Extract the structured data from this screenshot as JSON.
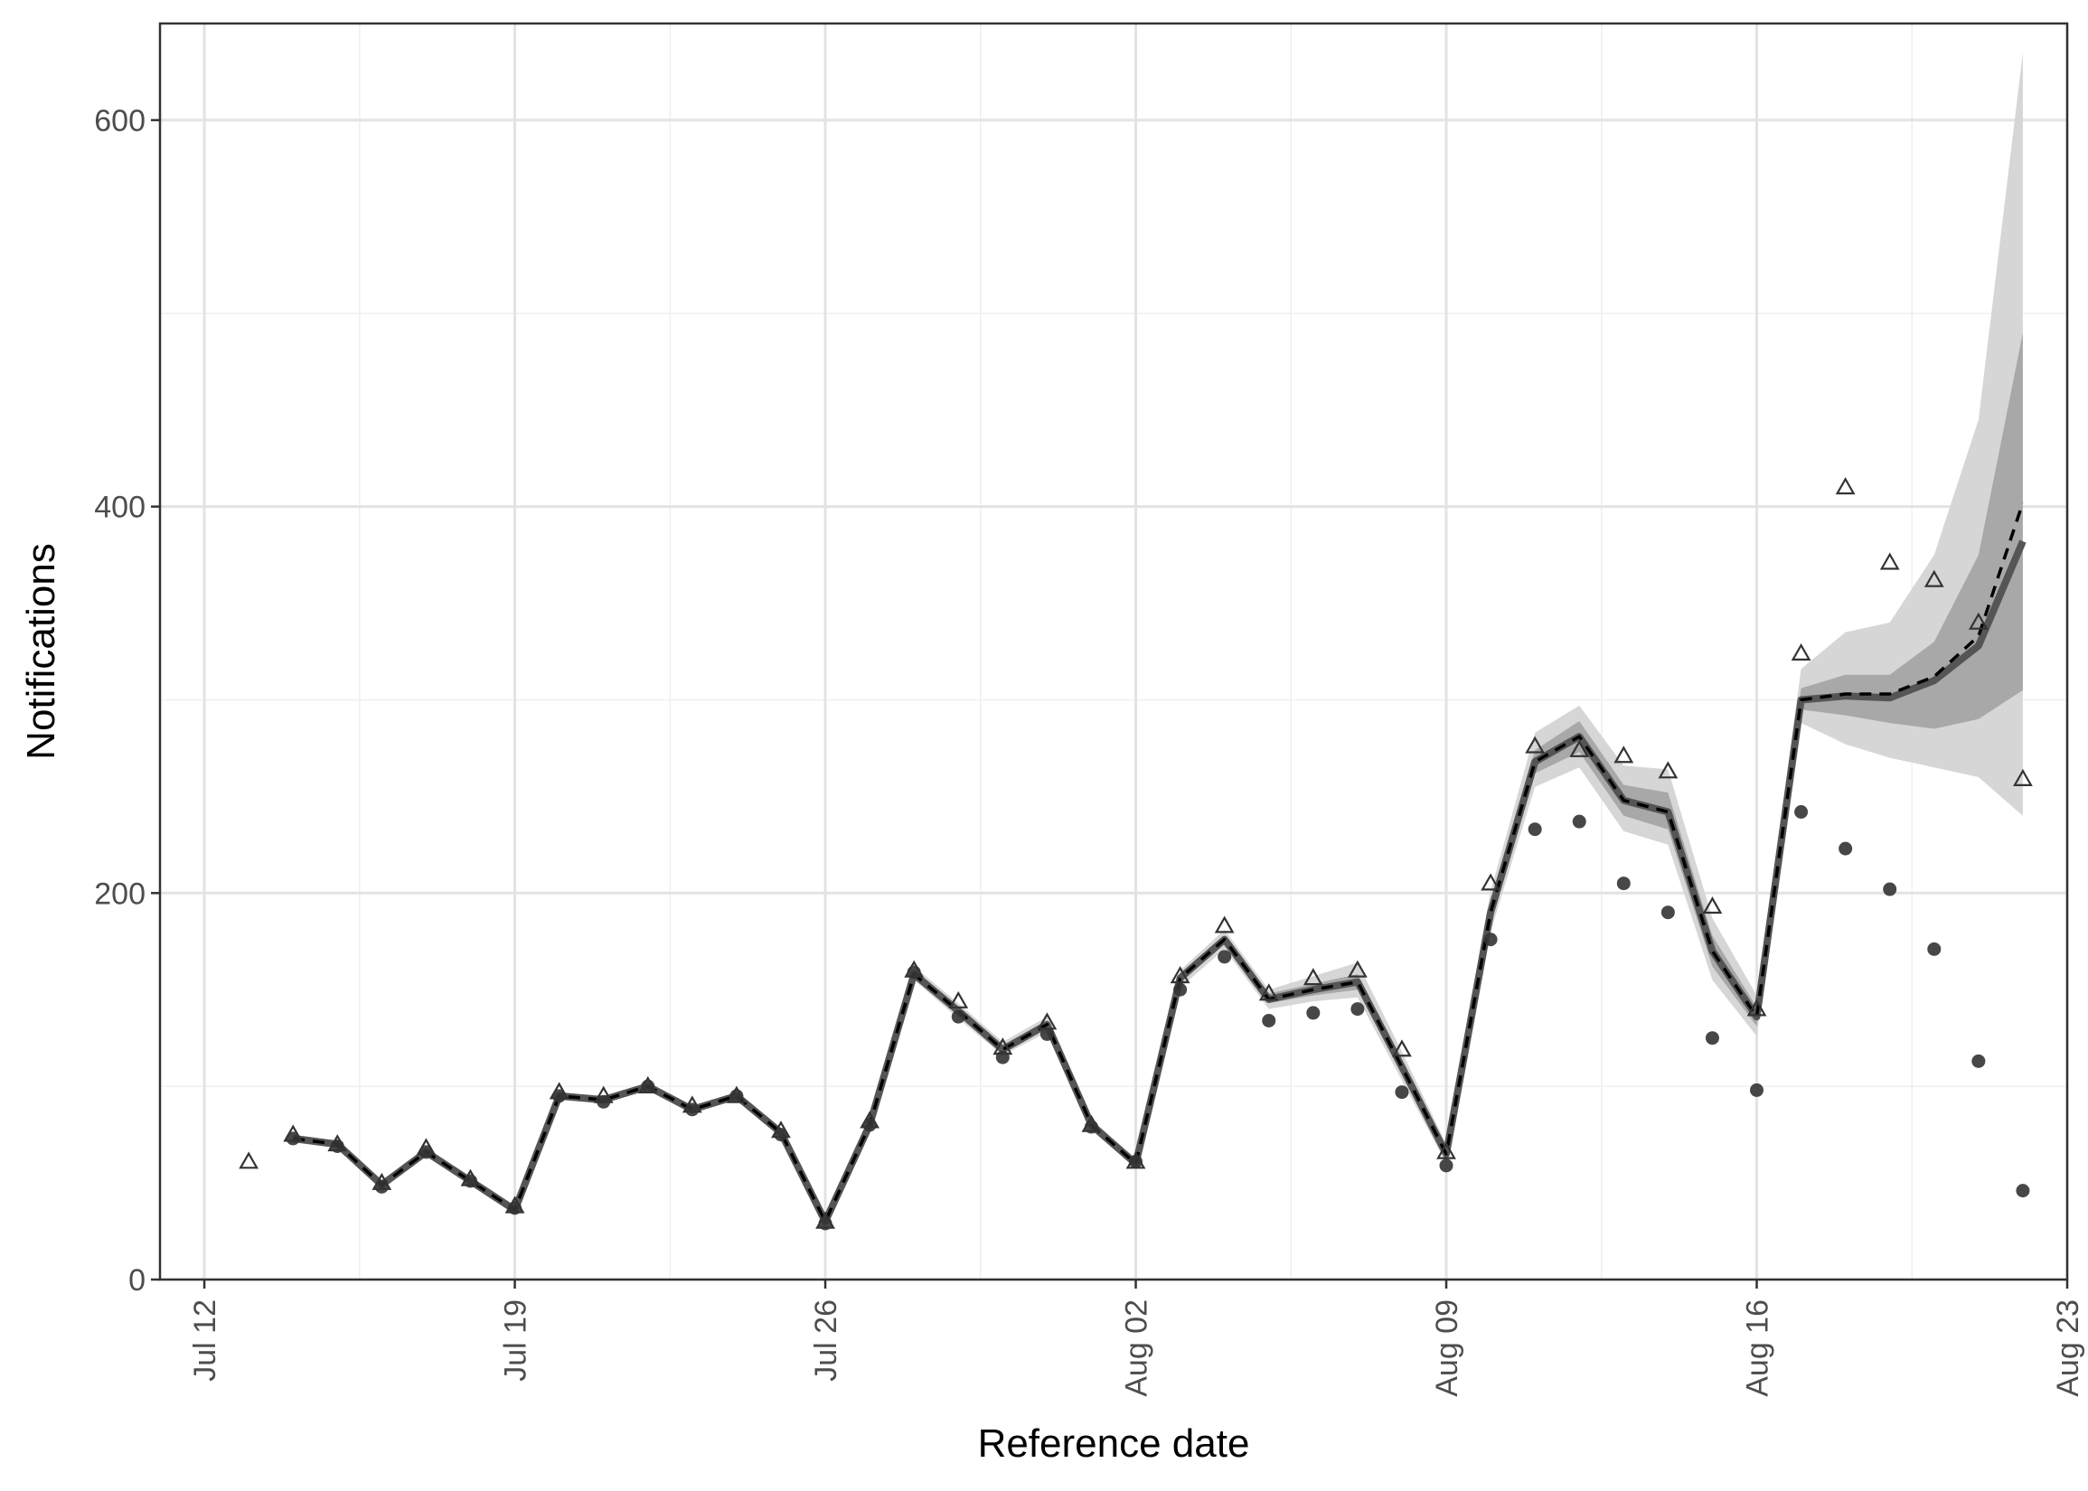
{
  "chart_data": {
    "type": "line",
    "xlabel": "Reference date",
    "ylabel": "Notifications",
    "xlim": [
      "2021-07-11",
      "2021-08-23"
    ],
    "ylim": [
      0,
      650
    ],
    "x_ticks": [
      {
        "date": "2021-07-12",
        "label": "Jul 12"
      },
      {
        "date": "2021-07-19",
        "label": "Jul 19"
      },
      {
        "date": "2021-07-26",
        "label": "Jul 26"
      },
      {
        "date": "2021-08-02",
        "label": "Aug 02"
      },
      {
        "date": "2021-08-09",
        "label": "Aug 09"
      },
      {
        "date": "2021-08-16",
        "label": "Aug 16"
      },
      {
        "date": "2021-08-23",
        "label": "Aug 23"
      }
    ],
    "y_ticks": [
      0,
      200,
      400,
      600
    ],
    "grid": true,
    "colors": {
      "nowcast_line": "#555555",
      "median_line": "#000000",
      "band_outer": "#d6d6d6",
      "band_inner": "#a8a8a8",
      "points": "#333333"
    },
    "dates": [
      "2021-07-13",
      "2021-07-14",
      "2021-07-15",
      "2021-07-16",
      "2021-07-17",
      "2021-07-18",
      "2021-07-19",
      "2021-07-20",
      "2021-07-21",
      "2021-07-22",
      "2021-07-23",
      "2021-07-24",
      "2021-07-25",
      "2021-07-26",
      "2021-07-27",
      "2021-07-28",
      "2021-07-29",
      "2021-07-30",
      "2021-07-31",
      "2021-08-01",
      "2021-08-02",
      "2021-08-03",
      "2021-08-04",
      "2021-08-05",
      "2021-08-06",
      "2021-08-07",
      "2021-08-08",
      "2021-08-09",
      "2021-08-10",
      "2021-08-11",
      "2021-08-12",
      "2021-08-13",
      "2021-08-14",
      "2021-08-15",
      "2021-08-16",
      "2021-08-17",
      "2021-08-18",
      "2021-08-19",
      "2021-08-20",
      "2021-08-21",
      "2021-08-22"
    ],
    "final_observed": [
      61,
      75,
      70,
      50,
      68,
      52,
      38,
      97,
      95,
      100,
      90,
      95,
      77,
      30,
      82,
      160,
      144,
      120,
      133,
      80,
      61,
      157,
      183,
      148,
      156,
      160,
      119,
      66,
      205,
      276,
      274,
      271,
      263,
      193,
      140,
      324,
      410,
      371,
      362,
      340,
      259
    ],
    "observed_at_estimation": [
      null,
      73,
      69,
      48,
      66,
      51,
      37,
      95,
      92,
      100,
      88,
      95,
      75,
      29,
      80,
      159,
      136,
      115,
      127,
      79,
      61,
      150,
      167,
      134,
      138,
      140,
      97,
      59,
      176,
      233,
      237,
      205,
      190,
      125,
      98,
      242,
      223,
      202,
      171,
      113,
      46
    ],
    "nowcast_median": [
      null,
      73,
      70,
      49,
      66,
      51,
      36,
      95,
      93,
      100,
      88,
      95,
      76,
      30,
      80,
      158,
      139,
      119,
      132,
      80,
      60,
      156,
      176,
      145,
      150,
      154,
      110,
      65,
      190,
      268,
      281,
      248,
      242,
      170,
      136,
      300,
      302,
      301,
      310,
      328,
      382
    ],
    "posterior_mean": [
      null,
      73,
      70,
      49,
      66,
      51,
      36,
      95,
      93,
      100,
      88,
      95,
      76,
      30,
      80,
      158,
      139,
      119,
      132,
      80,
      60,
      156,
      176,
      145,
      150,
      154,
      110,
      65,
      190,
      268,
      281,
      248,
      242,
      170,
      136,
      300,
      303,
      303,
      312,
      333,
      402
    ],
    "band_90": {
      "lower": [
        null,
        71,
        68,
        47,
        64,
        49,
        35,
        93,
        91,
        98,
        86,
        93,
        74,
        28,
        78,
        155,
        135,
        116,
        128,
        77,
        58,
        151,
        171,
        140,
        144,
        146,
        103,
        60,
        180,
        255,
        265,
        232,
        225,
        155,
        126,
        288,
        277,
        270,
        265,
        260,
        240
      ],
      "upper": [
        null,
        75,
        72,
        51,
        68,
        53,
        37,
        97,
        95,
        102,
        90,
        97,
        78,
        32,
        82,
        162,
        143,
        123,
        136,
        83,
        62,
        160,
        181,
        150,
        157,
        164,
        118,
        70,
        201,
        283,
        297,
        266,
        264,
        187,
        147,
        316,
        335,
        340,
        375,
        445,
        635
      ]
    },
    "band_50": {
      "lower": [
        null,
        72,
        69,
        48,
        65,
        50,
        35,
        94,
        92,
        99,
        87,
        94,
        75,
        29,
        79,
        157,
        137,
        118,
        130,
        79,
        59,
        154,
        174,
        143,
        147,
        150,
        107,
        62,
        185,
        262,
        273,
        240,
        233,
        162,
        131,
        295,
        292,
        288,
        285,
        290,
        305
      ],
      "upper": [
        null,
        74,
        71,
        50,
        67,
        52,
        37,
        96,
        94,
        101,
        89,
        96,
        77,
        31,
        81,
        160,
        141,
        121,
        134,
        81,
        61,
        158,
        178,
        148,
        153,
        158,
        114,
        67,
        195,
        274,
        289,
        256,
        252,
        178,
        141,
        306,
        313,
        313,
        330,
        375,
        490
      ]
    }
  }
}
